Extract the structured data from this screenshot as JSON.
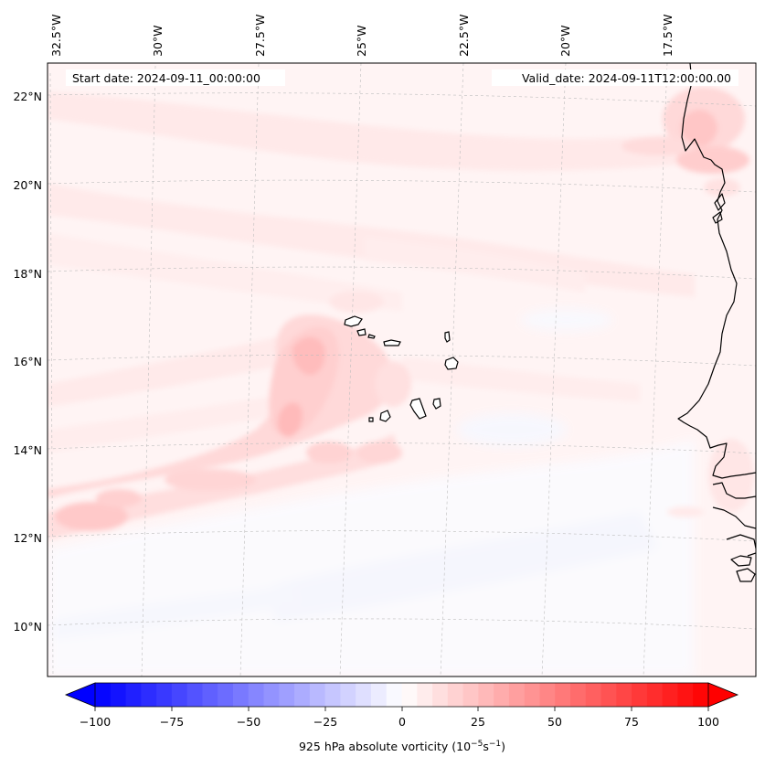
{
  "header": {
    "start_date": "Start date: 2024-09-11_00:00:00",
    "valid_date": "Valid_date: 2024-09-11T12:00:00.00"
  },
  "map": {
    "lon_labels": [
      "32.5°W",
      "30°W",
      "27.5°W",
      "25°W",
      "22.5°W",
      "20°W",
      "17.5°W"
    ],
    "lat_labels": [
      "22°N",
      "20°N",
      "18°N",
      "16°N",
      "14°N",
      "12°N",
      "10°N"
    ]
  },
  "colorbar": {
    "tick_labels": [
      "−100",
      "−75",
      "−50",
      "−25",
      "0",
      "25",
      "50",
      "75",
      "100"
    ],
    "label_main": "925 hPa absolute vorticity (10",
    "label_exp1": "−5",
    "label_mid": "s",
    "label_exp2": "−1",
    "label_end": ")",
    "min_color": "#0000ff",
    "mid_color": "#ffffff",
    "max_color": "#ff0000"
  },
  "colors": {
    "coastline": "#000000",
    "gridline": "#bdbdbd",
    "weak_positive": "#fff3f3"
  }
}
